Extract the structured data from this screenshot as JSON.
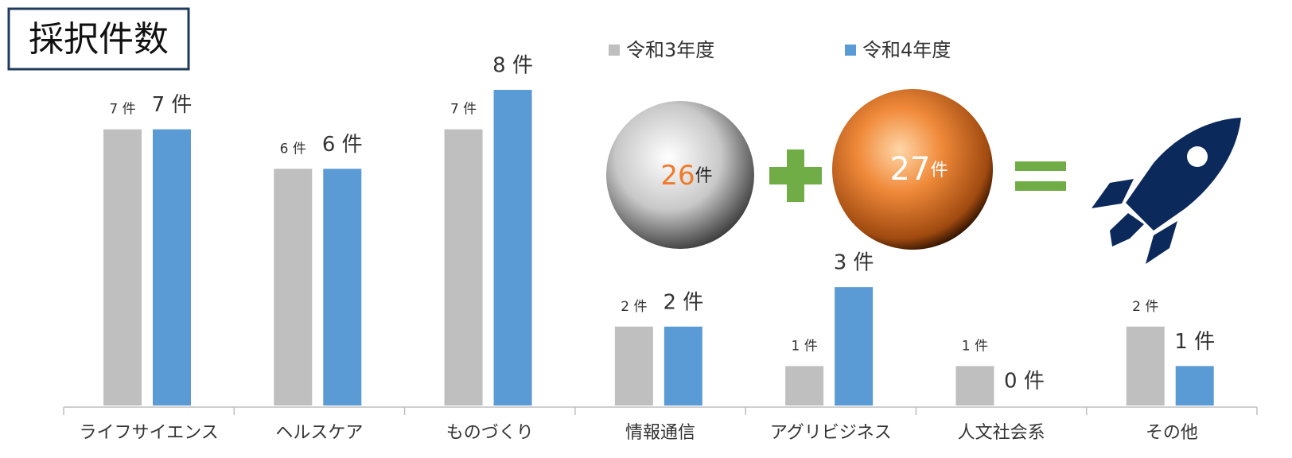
{
  "chart_data": {
    "type": "bar",
    "title": "採択件数",
    "categories": [
      "ライフサイエンス",
      "ヘルスケア",
      "ものづくり",
      "情報通信",
      "アグリビジネス",
      "人文社会系",
      "その他"
    ],
    "series": [
      {
        "name": "令和3年度",
        "color": "#bfbfbf",
        "values": [
          7,
          6,
          7,
          2,
          1,
          1,
          2
        ],
        "value_labels": [
          "7 件",
          "6 件",
          "7 件",
          "2 件",
          "1 件",
          "1 件",
          "2 件"
        ]
      },
      {
        "name": "令和4年度",
        "color": "#5b9bd5",
        "values": [
          7,
          6,
          8,
          2,
          3,
          0,
          1
        ],
        "value_labels": [
          "7 件",
          "6 件",
          "8 件",
          "2 件",
          "3 件",
          "0 件",
          "1 件"
        ]
      }
    ],
    "totals": {
      "values": [
        26,
        27
      ],
      "unit": "件"
    }
  }
}
